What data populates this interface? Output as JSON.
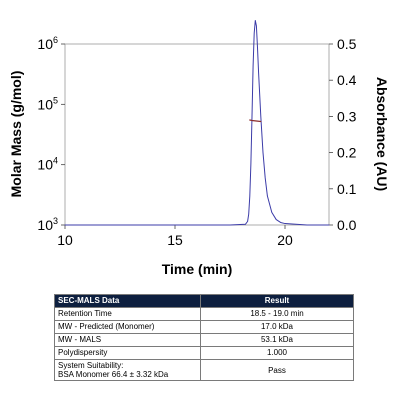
{
  "chart_data": {
    "type": "line",
    "title": "",
    "xlabel": "Time (min)",
    "ylabel_left": "Molar Mass (g/mol)",
    "ylabel_right": "Absorbance (AU)",
    "xlim": [
      10,
      22
    ],
    "x_ticks": [
      10,
      15,
      20
    ],
    "ylim_left": [
      1000,
      1000000
    ],
    "y_scale_left": "log",
    "y_ticks_left": [
      {
        "base": "10",
        "exp": "3",
        "value": 1000
      },
      {
        "base": "10",
        "exp": "4",
        "value": 10000
      },
      {
        "base": "10",
        "exp": "5",
        "value": 100000
      },
      {
        "base": "10",
        "exp": "6",
        "value": 1000000
      }
    ],
    "ylim_right": [
      0,
      0.5
    ],
    "y_ticks_right": [
      "0.0",
      "0.1",
      "0.2",
      "0.3",
      "0.4",
      "0.5"
    ],
    "grid": false,
    "legend": "none",
    "series": [
      {
        "axis": "right",
        "color": "#3b3ba8",
        "x": [
          10.0,
          12.0,
          14.0,
          16.0,
          17.5,
          18.2,
          18.3,
          18.35,
          18.4,
          18.45,
          18.5,
          18.55,
          18.6,
          18.65,
          18.7,
          18.75,
          18.8,
          18.9,
          19.0,
          19.1,
          19.2,
          19.4,
          19.6,
          19.8,
          20.0,
          20.5,
          21.0,
          22.0
        ],
        "y": [
          0.0,
          0.0,
          0.0,
          0.0,
          0.0,
          0.002,
          0.01,
          0.03,
          0.08,
          0.17,
          0.3,
          0.44,
          0.53,
          0.565,
          0.55,
          0.49,
          0.42,
          0.3,
          0.2,
          0.13,
          0.08,
          0.035,
          0.015,
          0.007,
          0.004,
          0.002,
          0.0,
          0.0
        ]
      },
      {
        "axis": "left",
        "color": "#8b2d2d",
        "x": [
          18.4,
          18.5,
          18.6,
          18.7,
          18.8,
          18.9
        ],
        "y": [
          55000,
          54000,
          53500,
          53000,
          52500,
          52000
        ]
      }
    ]
  },
  "table": {
    "headers": [
      "SEC-MALS Data",
      "Result"
    ],
    "rows": [
      {
        "label": "Retention Time",
        "value": "18.5 - 19.0 min"
      },
      {
        "label": "MW - Predicted (Monomer)",
        "value": "17.0 kDa"
      },
      {
        "label": "MW - MALS",
        "value": "53.1 kDa"
      },
      {
        "label": "Polydispersity",
        "value": "1.000"
      }
    ],
    "suitability": {
      "label_line1": "System Suitability:",
      "label_line2": "BSA Monomer 66.4 ± 3.32 kDa",
      "value": "Pass"
    }
  }
}
